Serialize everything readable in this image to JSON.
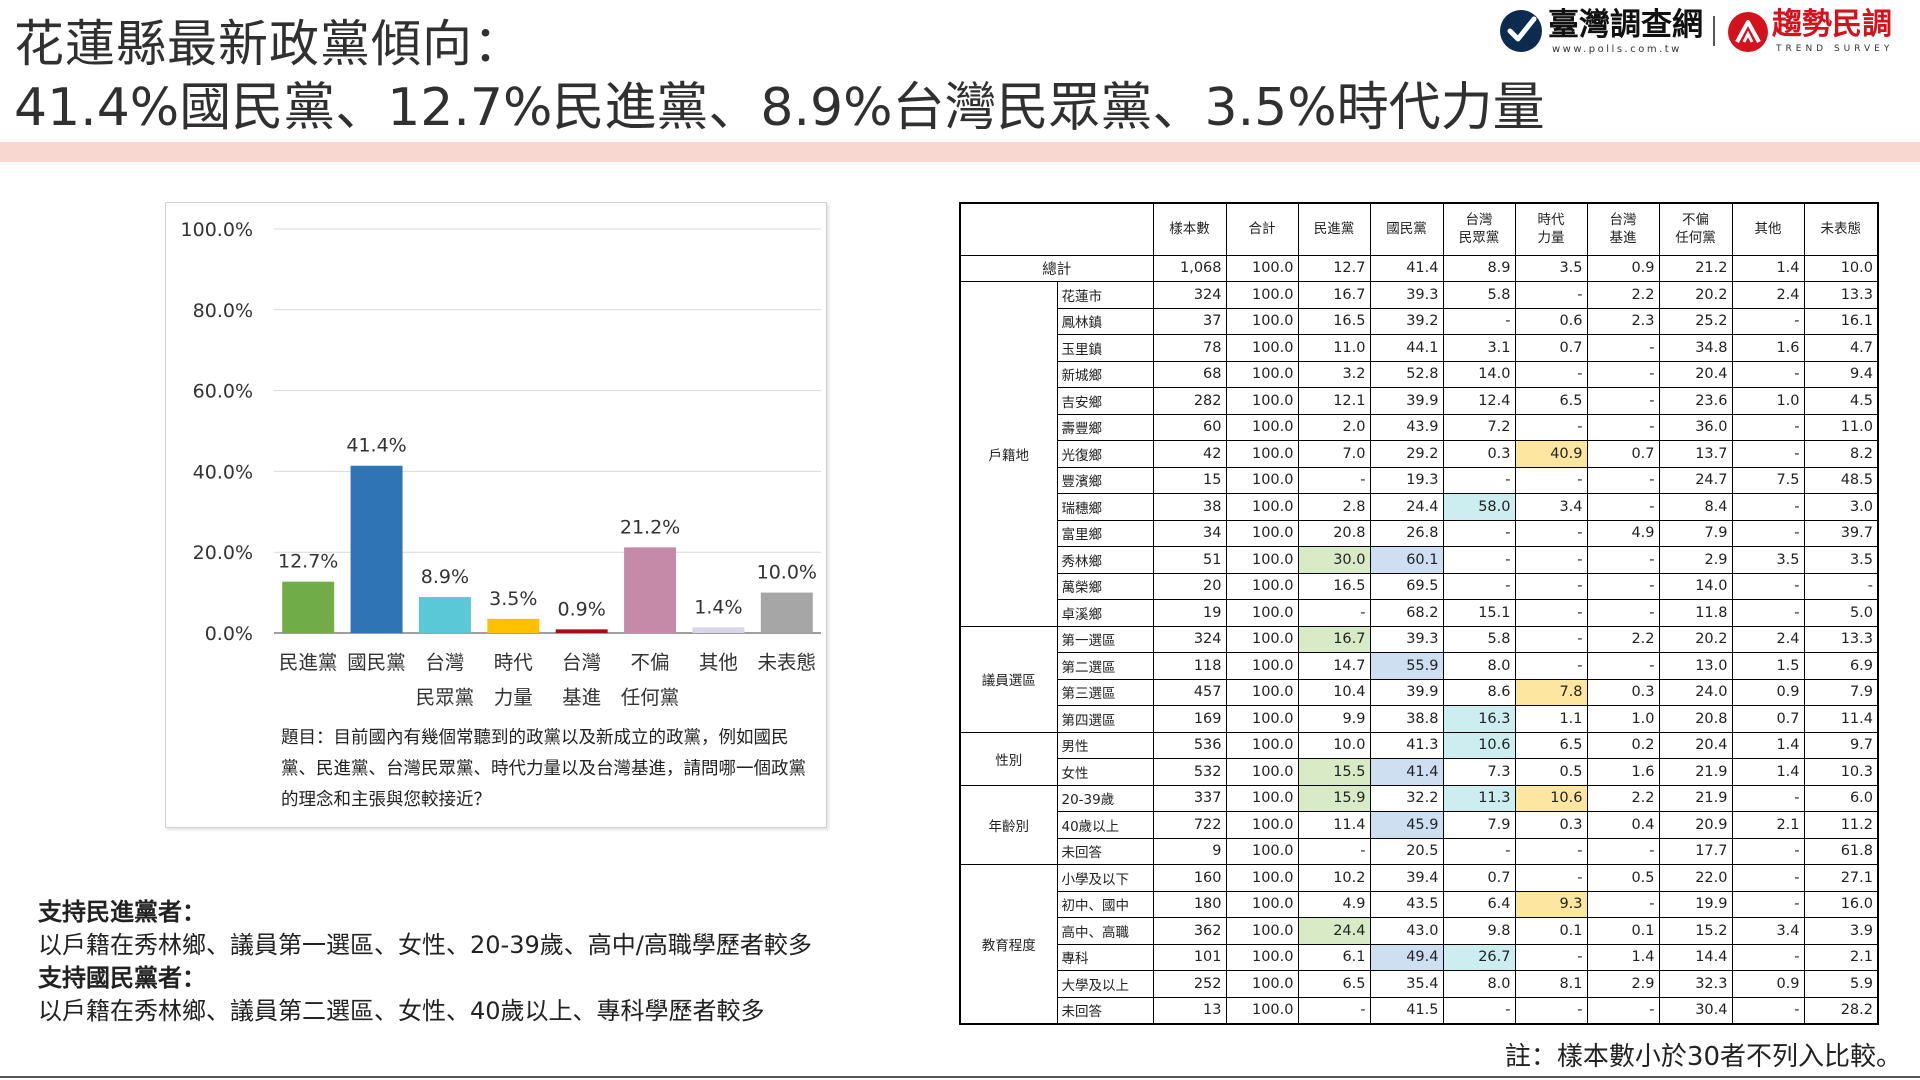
{
  "header": {
    "title_line1": "花蓮縣最新政黨傾向：",
    "title_line2": "41.4%國民黨、12.7%民進黨、8.9%台灣民眾黨、3.5%時代力量"
  },
  "logos": {
    "logo1_name": "臺灣調查網",
    "logo1_url": "www.polls.com.tw",
    "logo2_name": "趨勢民調",
    "logo2_sub": "TREND SURVEY"
  },
  "colors": {
    "band": "#f7d7d0",
    "green_highlight": "#d8ebc6",
    "blue_highlight": "#cfdff2",
    "teal_highlight": "#cdeef0",
    "yellow_highlight": "#fde7a0"
  },
  "chart_data": {
    "type": "bar",
    "categories": [
      [
        "民進黨"
      ],
      [
        "國民黨"
      ],
      [
        "台灣",
        "民眾黨"
      ],
      [
        "時代",
        "力量"
      ],
      [
        "台灣",
        "基進"
      ],
      [
        "不偏",
        "任何黨"
      ],
      [
        "其他"
      ],
      [
        "未表態"
      ]
    ],
    "values": [
      12.7,
      41.4,
      8.9,
      3.5,
      0.9,
      21.2,
      1.4,
      10.0
    ],
    "value_labels": [
      "12.7%",
      "41.4%",
      "8.9%",
      "3.5%",
      "0.9%",
      "21.2%",
      "1.4%",
      "10.0%"
    ],
    "colors": [
      "#70ad47",
      "#2e75b6",
      "#5bc8d8",
      "#ffc000",
      "#a50e12",
      "#c48aa8",
      "#d9d5ea",
      "#a6a6a6"
    ],
    "yticks": [
      "0.0%",
      "20.0%",
      "40.0%",
      "60.0%",
      "80.0%",
      "100.0%"
    ],
    "ylim": [
      0,
      100
    ],
    "grid": true
  },
  "question": "題目：目前國內有幾個常聽到的政黨以及新成立的政黨，例如國民黨、民進黨、台灣民眾黨、時代力量以及台灣基進，請問哪一個政黨的理念和主張與您較接近？",
  "findings": {
    "dpp_head": "支持民進黨者：",
    "dpp_text": "以戶籍在秀林鄉、議員第一選區、女性、20-39歲、高中/高職學歷者較多",
    "kmt_head": "支持國民黨者：",
    "kmt_text": "以戶籍在秀林鄉、議員第二選區、女性、40歲以上、專科學歷者較多"
  },
  "table": {
    "headers": [
      "樣本數",
      "合計",
      "民進黨",
      "國民黨",
      "台灣\n民眾黨",
      "時代\n力量",
      "台灣\n基進",
      "不偏\n任何黨",
      "其他",
      "未表態"
    ],
    "total": {
      "label": "總計",
      "values": [
        "1,068",
        "100.0",
        "12.7",
        "41.4",
        "8.9",
        "3.5",
        "0.9",
        "21.2",
        "1.4",
        "10.0"
      ]
    },
    "groups": [
      {
        "name": "戶籍地",
        "rows": [
          {
            "label": "花蓮市",
            "values": [
              "324",
              "100.0",
              "16.7",
              "39.3",
              "5.8",
              "-",
              "2.2",
              "20.2",
              "2.4",
              "13.3"
            ],
            "hl": {}
          },
          {
            "label": "鳳林鎮",
            "values": [
              "37",
              "100.0",
              "16.5",
              "39.2",
              "-",
              "0.6",
              "2.3",
              "25.2",
              "-",
              "16.1"
            ],
            "hl": {}
          },
          {
            "label": "玉里鎮",
            "values": [
              "78",
              "100.0",
              "11.0",
              "44.1",
              "3.1",
              "0.7",
              "-",
              "34.8",
              "1.6",
              "4.7"
            ],
            "hl": {}
          },
          {
            "label": "新城鄉",
            "values": [
              "68",
              "100.0",
              "3.2",
              "52.8",
              "14.0",
              "-",
              "-",
              "20.4",
              "-",
              "9.4"
            ],
            "hl": {}
          },
          {
            "label": "吉安鄉",
            "values": [
              "282",
              "100.0",
              "12.1",
              "39.9",
              "12.4",
              "6.5",
              "-",
              "23.6",
              "1.0",
              "4.5"
            ],
            "hl": {}
          },
          {
            "label": "壽豐鄉",
            "values": [
              "60",
              "100.0",
              "2.0",
              "43.9",
              "7.2",
              "-",
              "-",
              "36.0",
              "-",
              "11.0"
            ],
            "hl": {}
          },
          {
            "label": "光復鄉",
            "values": [
              "42",
              "100.0",
              "7.0",
              "29.2",
              "0.3",
              "40.9",
              "0.7",
              "13.7",
              "-",
              "8.2"
            ],
            "hl": {
              "5": "yellow"
            }
          },
          {
            "label": "豐濱鄉",
            "values": [
              "15",
              "100.0",
              "-",
              "19.3",
              "-",
              "-",
              "-",
              "24.7",
              "7.5",
              "48.5"
            ],
            "hl": {}
          },
          {
            "label": "瑞穗鄉",
            "values": [
              "38",
              "100.0",
              "2.8",
              "24.4",
              "58.0",
              "3.4",
              "-",
              "8.4",
              "-",
              "3.0"
            ],
            "hl": {
              "4": "teal"
            }
          },
          {
            "label": "富里鄉",
            "values": [
              "34",
              "100.0",
              "20.8",
              "26.8",
              "-",
              "-",
              "4.9",
              "7.9",
              "-",
              "39.7"
            ],
            "hl": {}
          },
          {
            "label": "秀林鄉",
            "values": [
              "51",
              "100.0",
              "30.0",
              "60.1",
              "-",
              "-",
              "-",
              "2.9",
              "3.5",
              "3.5"
            ],
            "hl": {
              "2": "green",
              "3": "blue"
            }
          },
          {
            "label": "萬榮鄉",
            "values": [
              "20",
              "100.0",
              "16.5",
              "69.5",
              "-",
              "-",
              "-",
              "14.0",
              "-",
              "-"
            ],
            "hl": {}
          },
          {
            "label": "卓溪鄉",
            "values": [
              "19",
              "100.0",
              "-",
              "68.2",
              "15.1",
              "-",
              "-",
              "11.8",
              "-",
              "5.0"
            ],
            "hl": {}
          }
        ]
      },
      {
        "name": "議員選區",
        "rows": [
          {
            "label": "第一選區",
            "values": [
              "324",
              "100.0",
              "16.7",
              "39.3",
              "5.8",
              "-",
              "2.2",
              "20.2",
              "2.4",
              "13.3"
            ],
            "hl": {
              "2": "green"
            }
          },
          {
            "label": "第二選區",
            "values": [
              "118",
              "100.0",
              "14.7",
              "55.9",
              "8.0",
              "-",
              "-",
              "13.0",
              "1.5",
              "6.9"
            ],
            "hl": {
              "3": "blue"
            }
          },
          {
            "label": "第三選區",
            "values": [
              "457",
              "100.0",
              "10.4",
              "39.9",
              "8.6",
              "7.8",
              "0.3",
              "24.0",
              "0.9",
              "7.9"
            ],
            "hl": {
              "5": "yellow"
            }
          },
          {
            "label": "第四選區",
            "values": [
              "169",
              "100.0",
              "9.9",
              "38.8",
              "16.3",
              "1.1",
              "1.0",
              "20.8",
              "0.7",
              "11.4"
            ],
            "hl": {
              "4": "teal"
            }
          }
        ]
      },
      {
        "name": "性別",
        "rows": [
          {
            "label": "男性",
            "values": [
              "536",
              "100.0",
              "10.0",
              "41.3",
              "10.6",
              "6.5",
              "0.2",
              "20.4",
              "1.4",
              "9.7"
            ],
            "hl": {
              "4": "teal"
            }
          },
          {
            "label": "女性",
            "values": [
              "532",
              "100.0",
              "15.5",
              "41.4",
              "7.3",
              "0.5",
              "1.6",
              "21.9",
              "1.4",
              "10.3"
            ],
            "hl": {
              "2": "green",
              "3": "blue"
            }
          }
        ]
      },
      {
        "name": "年齡別",
        "rows": [
          {
            "label": "20-39歲",
            "values": [
              "337",
              "100.0",
              "15.9",
              "32.2",
              "11.3",
              "10.6",
              "2.2",
              "21.9",
              "-",
              "6.0"
            ],
            "hl": {
              "2": "green",
              "4": "teal",
              "5": "yellow"
            }
          },
          {
            "label": "40歲以上",
            "values": [
              "722",
              "100.0",
              "11.4",
              "45.9",
              "7.9",
              "0.3",
              "0.4",
              "20.9",
              "2.1",
              "11.2"
            ],
            "hl": {
              "3": "blue"
            }
          },
          {
            "label": "未回答",
            "values": [
              "9",
              "100.0",
              "-",
              "20.5",
              "-",
              "-",
              "-",
              "17.7",
              "-",
              "61.8"
            ],
            "hl": {}
          }
        ]
      },
      {
        "name": "教育程度",
        "rows": [
          {
            "label": "小學及以下",
            "values": [
              "160",
              "100.0",
              "10.2",
              "39.4",
              "0.7",
              "-",
              "0.5",
              "22.0",
              "-",
              "27.1"
            ],
            "hl": {}
          },
          {
            "label": "初中、國中",
            "values": [
              "180",
              "100.0",
              "4.9",
              "43.5",
              "6.4",
              "9.3",
              "-",
              "19.9",
              "-",
              "16.0"
            ],
            "hl": {
              "5": "yellow"
            }
          },
          {
            "label": "高中、高職",
            "values": [
              "362",
              "100.0",
              "24.4",
              "43.0",
              "9.8",
              "0.1",
              "0.1",
              "15.2",
              "3.4",
              "3.9"
            ],
            "hl": {
              "2": "green"
            }
          },
          {
            "label": "專科",
            "values": [
              "101",
              "100.0",
              "6.1",
              "49.4",
              "26.7",
              "-",
              "1.4",
              "14.4",
              "-",
              "2.1"
            ],
            "hl": {
              "3": "blue",
              "4": "teal"
            }
          },
          {
            "label": "大學及以上",
            "values": [
              "252",
              "100.0",
              "6.5",
              "35.4",
              "8.0",
              "8.1",
              "2.9",
              "32.3",
              "0.9",
              "5.9"
            ],
            "hl": {}
          },
          {
            "label": "未回答",
            "values": [
              "13",
              "100.0",
              "-",
              "41.5",
              "-",
              "-",
              "-",
              "30.4",
              "-",
              "28.2"
            ],
            "hl": {}
          }
        ]
      }
    ]
  },
  "note": "註：樣本數小於30者不列入比較。"
}
